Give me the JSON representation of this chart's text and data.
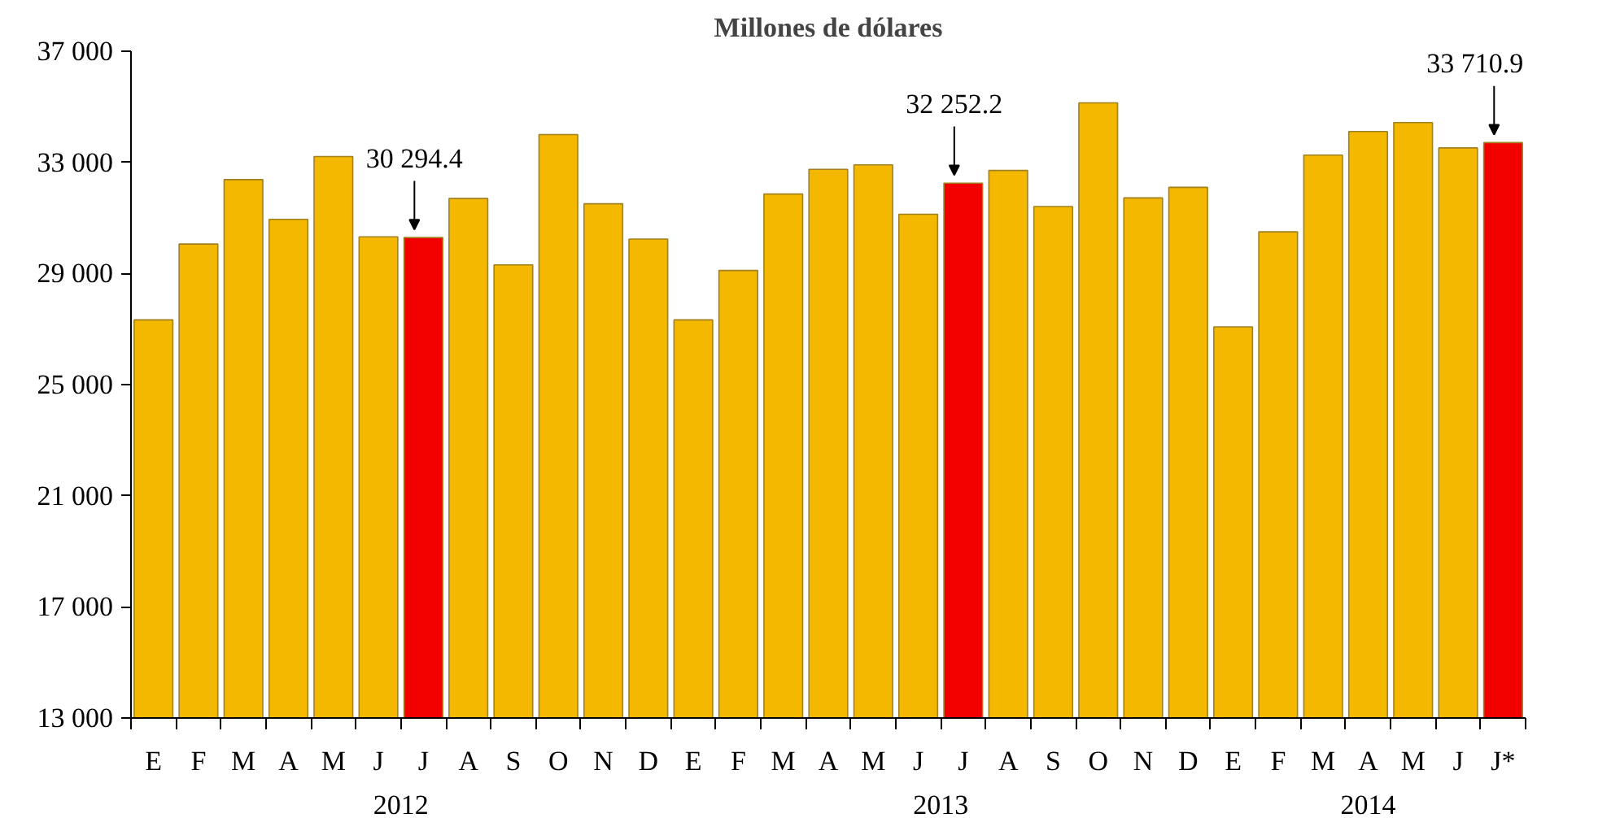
{
  "chart_data": {
    "type": "bar",
    "title": "Millones de dólares",
    "categories": [
      "E",
      "F",
      "M",
      "A",
      "M",
      "J",
      "J",
      "A",
      "S",
      "O",
      "N",
      "D",
      "E",
      "F",
      "M",
      "A",
      "M",
      "J",
      "J",
      "A",
      "S",
      "O",
      "N",
      "D",
      "E",
      "F",
      "M",
      "A",
      "M",
      "J",
      "J*"
    ],
    "values": [
      27330,
      30060,
      32380,
      30950,
      33210,
      30320,
      30294.4,
      31700,
      29310,
      34000,
      31510,
      30240,
      27330,
      29110,
      31860,
      32750,
      32910,
      31130,
      32252.2,
      32710,
      31410,
      35140,
      31720,
      32100,
      27080,
      30500,
      33260,
      34110,
      34430,
      33520,
      33710.9
    ],
    "colors": [
      "#f5b800",
      "#f5b800",
      "#f5b800",
      "#f5b800",
      "#f5b800",
      "#f5b800",
      "#f20000",
      "#f5b800",
      "#f5b800",
      "#f5b800",
      "#f5b800",
      "#f5b800",
      "#f5b800",
      "#f5b800",
      "#f5b800",
      "#f5b800",
      "#f5b800",
      "#f5b800",
      "#f20000",
      "#f5b800",
      "#f5b800",
      "#f5b800",
      "#f5b800",
      "#f5b800",
      "#f5b800",
      "#f5b800",
      "#f5b800",
      "#f5b800",
      "#f5b800",
      "#f5b800",
      "#f20000"
    ],
    "value_labels": [
      null,
      null,
      null,
      null,
      null,
      null,
      "30 294.4",
      null,
      null,
      null,
      null,
      null,
      null,
      null,
      null,
      null,
      null,
      null,
      "32 252.2",
      null,
      null,
      null,
      null,
      null,
      null,
      null,
      null,
      null,
      null,
      null,
      "33 710.9"
    ],
    "annotations": [
      "2012",
      "2013",
      "2014"
    ],
    "ylim": [
      13000,
      37000
    ],
    "yticks": [
      {
        "value": 13000,
        "label": "13 000"
      },
      {
        "value": 17000,
        "label": "17 000"
      },
      {
        "value": 21000,
        "label": "21 000"
      },
      {
        "value": 25000,
        "label": "25 000"
      },
      {
        "value": 29000,
        "label": "29 000"
      },
      {
        "value": 33000,
        "label": "33 000"
      },
      {
        "value": 37000,
        "label": "37 000"
      }
    ],
    "grid": false
  }
}
